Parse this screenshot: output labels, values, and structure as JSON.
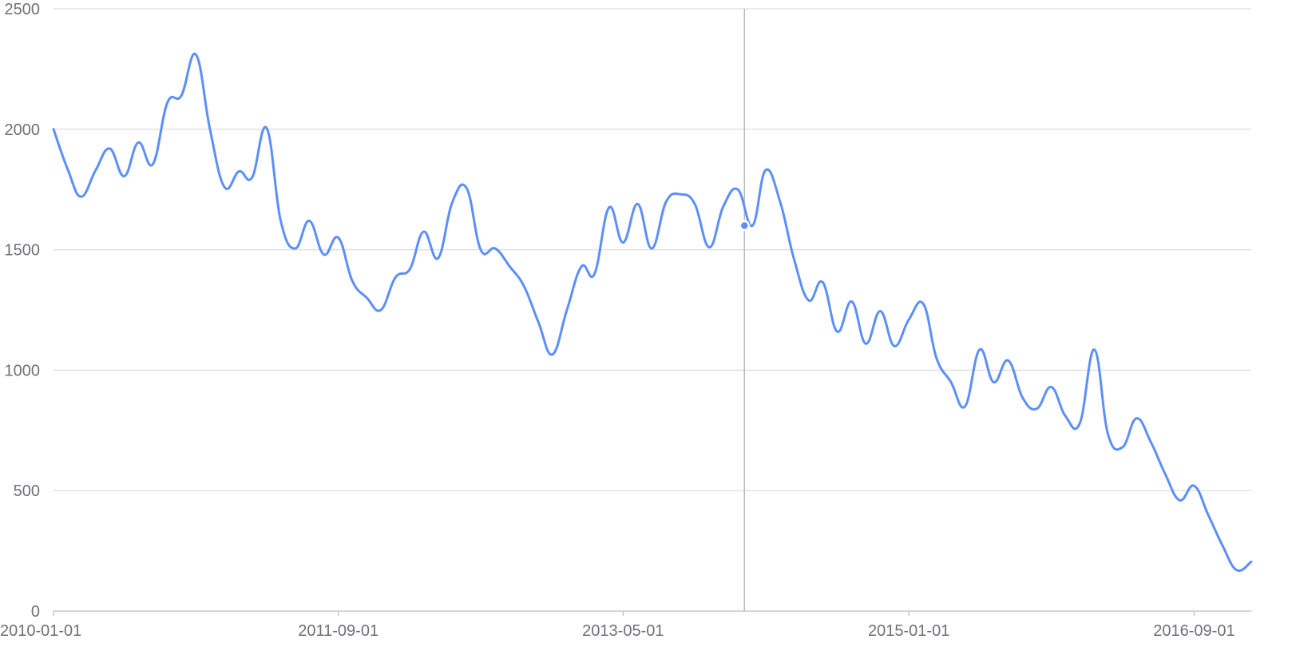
{
  "chart_data": {
    "type": "line",
    "title": "",
    "xlabel": "",
    "ylabel": "",
    "xlim": [
      "2010-01-01",
      "2017-01-01"
    ],
    "ylim": [
      0,
      2500
    ],
    "y_ticks": [
      "0",
      "500",
      "1000",
      "1500",
      "2000",
      "2500"
    ],
    "x_ticks": [
      "2010-01-01",
      "2011-09-01",
      "2013-05-01",
      "2015-01-01",
      "2016-09-01"
    ],
    "grid": true,
    "legend": "none",
    "line_color": "#5b8ff9",
    "hover": {
      "x": "2014-01-15",
      "y": 1600
    },
    "series": [
      {
        "x": [
          "2010-01-01",
          "2010-02-01",
          "2010-03-01",
          "2010-04-01",
          "2010-05-01",
          "2010-06-01",
          "2010-07-01",
          "2010-08-01",
          "2010-09-01",
          "2010-10-01",
          "2010-11-01",
          "2010-12-01",
          "2011-01-01",
          "2011-02-01",
          "2011-03-01",
          "2011-04-01",
          "2011-05-01",
          "2011-06-01",
          "2011-07-01",
          "2011-08-01",
          "2011-09-01",
          "2011-10-01",
          "2011-11-01",
          "2011-12-01",
          "2012-01-01",
          "2012-02-01",
          "2012-03-01",
          "2012-04-01",
          "2012-05-01",
          "2012-06-01",
          "2012-07-01",
          "2012-08-01",
          "2012-09-01",
          "2012-10-01",
          "2012-11-01",
          "2012-12-01",
          "2013-01-01",
          "2013-02-01",
          "2013-03-01",
          "2013-04-01",
          "2013-05-01",
          "2013-06-01",
          "2013-07-01",
          "2013-08-01",
          "2013-09-01",
          "2013-10-01",
          "2013-11-01",
          "2013-12-01",
          "2014-01-01",
          "2014-02-01",
          "2014-03-01",
          "2014-04-01",
          "2014-05-01",
          "2014-06-01",
          "2014-07-01",
          "2014-08-01",
          "2014-09-01",
          "2014-10-01",
          "2014-11-01",
          "2014-12-01",
          "2015-01-01",
          "2015-02-01",
          "2015-03-01",
          "2015-04-01",
          "2015-05-01",
          "2015-06-01",
          "2015-07-01",
          "2015-08-01",
          "2015-09-01",
          "2015-10-01",
          "2015-11-01",
          "2015-12-01",
          "2016-01-01",
          "2016-02-01",
          "2016-03-01",
          "2016-04-01",
          "2016-05-01",
          "2016-06-01",
          "2016-07-01",
          "2016-08-01",
          "2016-09-01",
          "2016-10-01",
          "2016-11-01",
          "2016-12-01",
          "2017-01-01"
        ],
        "values": [
          2000,
          1830,
          1720,
          1830,
          1920,
          1805,
          1945,
          1855,
          2110,
          2140,
          2310,
          2000,
          1760,
          1825,
          1800,
          2005,
          1620,
          1505,
          1620,
          1480,
          1550,
          1370,
          1300,
          1250,
          1385,
          1420,
          1575,
          1465,
          1695,
          1755,
          1500,
          1505,
          1430,
          1350,
          1200,
          1065,
          1250,
          1430,
          1400,
          1675,
          1530,
          1690,
          1505,
          1700,
          1730,
          1690,
          1510,
          1680,
          1750,
          1600,
          1830,
          1700,
          1460,
          1290,
          1365,
          1160,
          1285,
          1110,
          1245,
          1100,
          1210,
          1275,
          1050,
          950,
          850,
          1085,
          950,
          1040,
          885,
          840,
          930,
          810,
          780,
          1085,
          735,
          680,
          800,
          700,
          570,
          460,
          520,
          400,
          270,
          170,
          205
        ]
      }
    ]
  }
}
